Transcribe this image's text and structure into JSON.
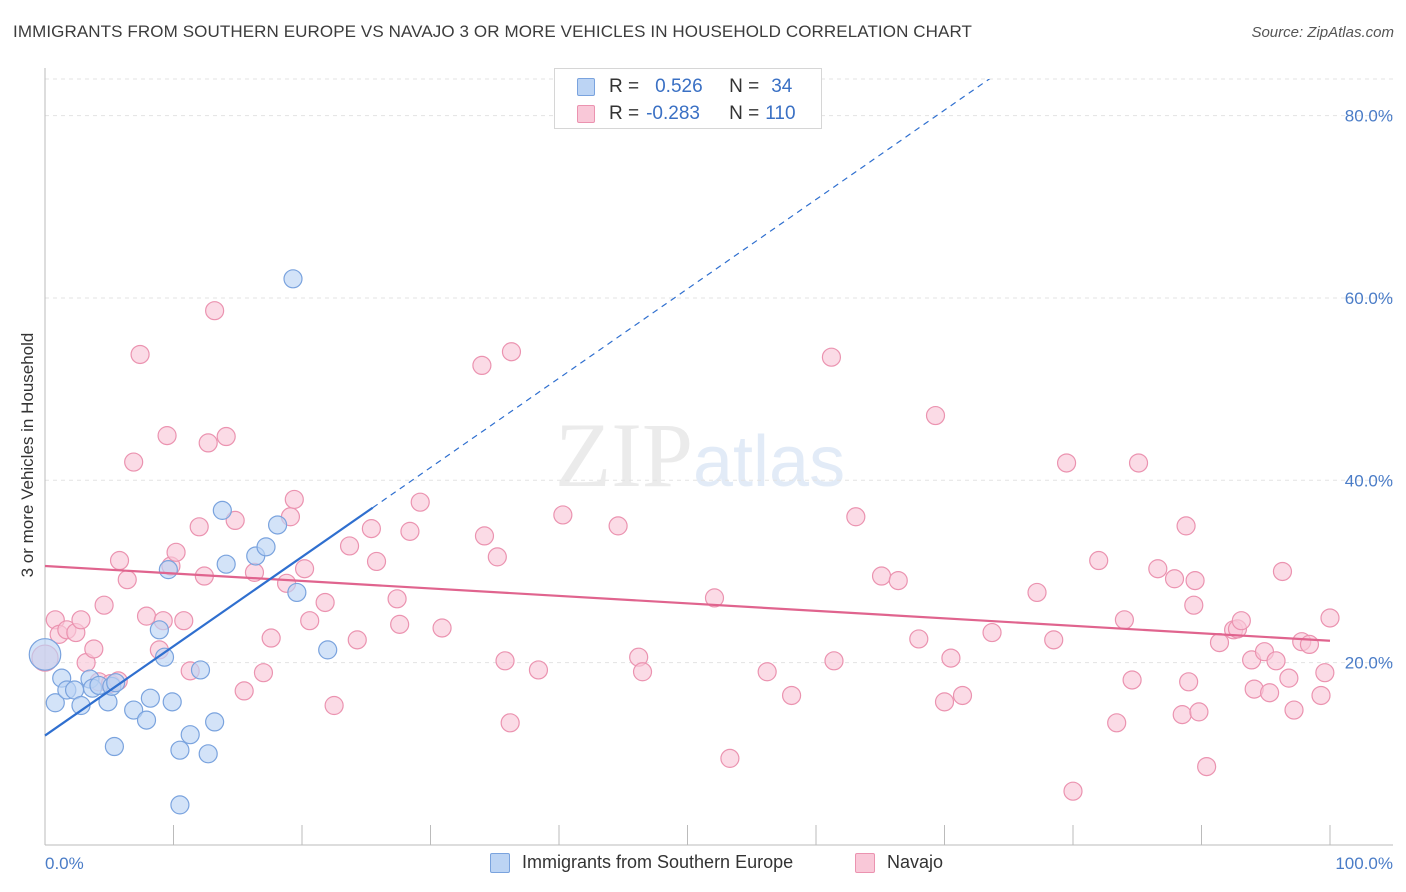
{
  "header": {
    "title": "IMMIGRANTS FROM SOUTHERN EUROPE VS NAVAJO 3 OR MORE VEHICLES IN HOUSEHOLD CORRELATION CHART",
    "source": "Source: ZipAtlas.com"
  },
  "watermark": {
    "zip": "ZIP",
    "atlas": "atlas"
  },
  "legend": {
    "rows": [
      {
        "r_label": "R =",
        "r_value": "0.526",
        "n_label": "N =",
        "n_value": "34"
      },
      {
        "r_label": "R =",
        "r_value": "-0.283",
        "n_label": "N =",
        "n_value": "110"
      }
    ],
    "bottom": [
      "Immigrants from Southern Europe",
      "Navajo"
    ]
  },
  "colors": {
    "blue_fill": "#bcd4f4",
    "blue_stroke": "#7aa3de",
    "blue_line": "#2f6fcf",
    "pink_fill": "#f9c8d8",
    "pink_stroke": "#eb93b0",
    "pink_line": "#e0648e",
    "grid": "#e3e3e3",
    "axis_label": "#4a7cc7"
  },
  "chart_data": {
    "type": "scatter",
    "title": "IMMIGRANTS FROM SOUTHERN EUROPE VS NAVAJO 3 OR MORE VEHICLES IN HOUSEHOLD CORRELATION CHART",
    "xlabel": "",
    "ylabel": "3 or more Vehicles in Household",
    "xlim": [
      0,
      100
    ],
    "ylim": [
      0,
      85
    ],
    "x_tick_labels": [
      "0.0%",
      "100.0%"
    ],
    "y_ticks": [
      20,
      40,
      60,
      80
    ],
    "y_tick_labels": [
      "20.0%",
      "40.0%",
      "60.0%",
      "80.0%"
    ],
    "grid": true,
    "series": [
      {
        "name": "Immigrants from Southern Europe",
        "color": "blue",
        "trend": {
          "x": [
            0,
            100
          ],
          "y": [
            12.0,
            110.0
          ],
          "solid_until_x": 25.5
        },
        "points": [
          [
            0.0,
            20.9,
            3
          ],
          [
            0.8,
            15.6,
            1
          ],
          [
            1.3,
            18.3,
            1
          ],
          [
            1.7,
            17.0,
            1
          ],
          [
            2.3,
            17.0,
            1
          ],
          [
            2.8,
            15.3,
            1
          ],
          [
            3.5,
            18.2,
            1
          ],
          [
            3.7,
            17.2,
            1
          ],
          [
            4.2,
            17.5,
            1
          ],
          [
            4.9,
            15.7,
            1
          ],
          [
            5.2,
            17.4,
            1
          ],
          [
            5.5,
            17.8,
            1
          ],
          [
            5.4,
            10.8,
            1
          ],
          [
            6.9,
            14.8,
            1
          ],
          [
            7.9,
            13.7,
            1
          ],
          [
            8.2,
            16.1,
            1
          ],
          [
            8.9,
            23.6,
            1
          ],
          [
            9.3,
            20.6,
            1
          ],
          [
            9.6,
            30.2,
            1
          ],
          [
            9.9,
            15.7,
            1
          ],
          [
            10.5,
            10.4,
            1
          ],
          [
            10.5,
            4.4,
            1
          ],
          [
            11.3,
            12.1,
            1
          ],
          [
            12.1,
            19.2,
            1
          ],
          [
            12.7,
            10.0,
            1
          ],
          [
            13.2,
            13.5,
            1
          ],
          [
            13.8,
            36.7,
            1
          ],
          [
            14.1,
            30.8,
            1
          ],
          [
            16.4,
            31.7,
            1
          ],
          [
            17.2,
            32.7,
            1
          ],
          [
            18.1,
            35.1,
            1
          ],
          [
            19.3,
            62.1,
            1
          ],
          [
            19.6,
            27.7,
            1
          ],
          [
            22.0,
            21.4,
            1
          ]
        ]
      },
      {
        "name": "Navajo",
        "color": "pink",
        "trend": {
          "x": [
            0,
            100
          ],
          "y": [
            30.6,
            22.4
          ]
        },
        "points": [
          [
            0.0,
            20.5,
            2
          ],
          [
            0.8,
            24.7,
            1
          ],
          [
            1.1,
            23.1,
            1
          ],
          [
            1.7,
            23.6,
            1
          ],
          [
            2.4,
            23.3,
            1
          ],
          [
            2.8,
            24.7,
            1
          ],
          [
            3.2,
            20.0,
            1
          ],
          [
            3.8,
            21.5,
            1
          ],
          [
            4.2,
            17.9,
            1
          ],
          [
            4.6,
            26.3,
            1
          ],
          [
            5.1,
            17.7,
            1
          ],
          [
            5.7,
            18.0,
            1
          ],
          [
            5.8,
            31.2,
            1
          ],
          [
            6.4,
            29.1,
            1
          ],
          [
            6.9,
            42.0,
            1
          ],
          [
            7.4,
            53.8,
            1
          ],
          [
            7.9,
            25.1,
            1
          ],
          [
            8.9,
            21.4,
            1
          ],
          [
            9.2,
            24.6,
            1
          ],
          [
            9.5,
            44.9,
            1
          ],
          [
            9.8,
            30.6,
            1
          ],
          [
            10.2,
            32.1,
            1
          ],
          [
            10.8,
            24.6,
            1
          ],
          [
            11.3,
            19.1,
            1
          ],
          [
            12.0,
            34.9,
            1
          ],
          [
            12.4,
            29.5,
            1
          ],
          [
            12.7,
            44.1,
            1
          ],
          [
            13.2,
            58.6,
            1
          ],
          [
            14.1,
            44.8,
            1
          ],
          [
            14.8,
            35.6,
            1
          ],
          [
            15.5,
            16.9,
            1
          ],
          [
            16.3,
            29.9,
            1
          ],
          [
            17.0,
            18.9,
            1
          ],
          [
            17.6,
            22.7,
            1
          ],
          [
            18.8,
            28.7,
            1
          ],
          [
            19.1,
            36.0,
            1
          ],
          [
            19.4,
            37.9,
            1
          ],
          [
            20.2,
            30.3,
            1
          ],
          [
            20.6,
            24.6,
            1
          ],
          [
            21.8,
            26.6,
            1
          ],
          [
            22.5,
            15.3,
            1
          ],
          [
            23.7,
            32.8,
            1
          ],
          [
            24.3,
            22.5,
            1
          ],
          [
            25.4,
            34.7,
            1
          ],
          [
            25.8,
            31.1,
            1
          ],
          [
            27.4,
            27.0,
            1
          ],
          [
            27.6,
            24.2,
            1
          ],
          [
            28.4,
            34.4,
            1
          ],
          [
            29.2,
            37.6,
            1
          ],
          [
            30.9,
            23.8,
            1
          ],
          [
            34.0,
            52.6,
            1
          ],
          [
            34.2,
            33.9,
            1
          ],
          [
            35.2,
            31.6,
            1
          ],
          [
            35.8,
            20.2,
            1
          ],
          [
            36.2,
            13.4,
            1
          ],
          [
            36.3,
            54.1,
            1
          ],
          [
            38.4,
            19.2,
            1
          ],
          [
            40.3,
            36.2,
            1
          ],
          [
            44.6,
            35.0,
            1
          ],
          [
            46.2,
            20.6,
            1
          ],
          [
            46.5,
            19.0,
            1
          ],
          [
            52.1,
            27.1,
            1
          ],
          [
            53.3,
            9.5,
            1
          ],
          [
            56.2,
            19.0,
            1
          ],
          [
            58.1,
            16.4,
            1
          ],
          [
            61.2,
            53.5,
            1
          ],
          [
            61.4,
            20.2,
            1
          ],
          [
            63.1,
            36.0,
            1
          ],
          [
            65.1,
            29.5,
            1
          ],
          [
            66.4,
            29.0,
            1
          ],
          [
            68.0,
            22.6,
            1
          ],
          [
            69.3,
            47.1,
            1
          ],
          [
            70.0,
            15.7,
            1
          ],
          [
            70.5,
            20.5,
            1
          ],
          [
            71.4,
            16.4,
            1
          ],
          [
            73.7,
            23.3,
            1
          ],
          [
            77.2,
            27.7,
            1
          ],
          [
            78.5,
            22.5,
            1
          ],
          [
            79.5,
            41.9,
            1
          ],
          [
            80.0,
            5.9,
            1
          ],
          [
            82.0,
            31.2,
            1
          ],
          [
            83.4,
            13.4,
            1
          ],
          [
            84.0,
            24.7,
            1
          ],
          [
            84.6,
            18.1,
            1
          ],
          [
            85.1,
            41.9,
            1
          ],
          [
            86.6,
            30.3,
            1
          ],
          [
            87.9,
            29.2,
            1
          ],
          [
            88.5,
            14.3,
            1
          ],
          [
            88.8,
            35.0,
            1
          ],
          [
            89.0,
            17.9,
            1
          ],
          [
            89.4,
            26.3,
            1
          ],
          [
            89.5,
            29.0,
            1
          ],
          [
            89.8,
            14.6,
            1
          ],
          [
            90.4,
            8.6,
            1
          ],
          [
            91.4,
            22.2,
            1
          ],
          [
            92.5,
            23.6,
            1
          ],
          [
            92.8,
            23.7,
            1
          ],
          [
            93.1,
            24.6,
            1
          ],
          [
            93.9,
            20.3,
            1
          ],
          [
            94.1,
            17.1,
            1
          ],
          [
            94.9,
            21.2,
            1
          ],
          [
            95.3,
            16.7,
            1
          ],
          [
            95.8,
            20.2,
            1
          ],
          [
            96.3,
            30.0,
            1
          ],
          [
            96.8,
            18.3,
            1
          ],
          [
            97.2,
            14.8,
            1
          ],
          [
            97.8,
            22.3,
            1
          ],
          [
            98.4,
            22.0,
            1
          ],
          [
            99.3,
            16.4,
            1
          ],
          [
            99.6,
            18.9,
            1
          ],
          [
            100.0,
            24.9,
            1
          ]
        ]
      }
    ]
  }
}
